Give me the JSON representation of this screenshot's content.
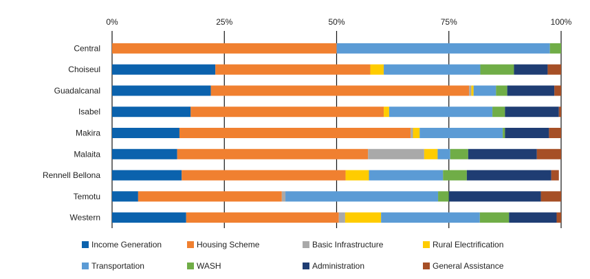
{
  "chart_data": {
    "type": "bar",
    "orientation": "horizontal",
    "stacked": true,
    "normalized_percent": true,
    "title": "",
    "xlabel": "",
    "ylabel": "",
    "xlim": [
      0,
      100
    ],
    "x_ticks": [
      "0%",
      "25%",
      "50%",
      "75%",
      "100%"
    ],
    "grid": "vertical",
    "legend_position": "bottom",
    "categories": [
      "Central",
      "Choiseul",
      "Guadalcanal",
      "Isabel",
      "Makira",
      "Malaita",
      "Rennell Bellona",
      "Temotu",
      "Western"
    ],
    "series": [
      {
        "name": "Income Generation",
        "color": "#0b62ad",
        "values": [
          0,
          23,
          22,
          17.5,
          15,
          14.5,
          15.5,
          5.8,
          16.5
        ]
      },
      {
        "name": "Housing Scheme",
        "color": "#f08030",
        "values": [
          50,
          34.5,
          57.5,
          43,
          51.5,
          42.5,
          36.5,
          32,
          34
        ]
      },
      {
        "name": "Basic Infrastructure",
        "color": "#a9a9a9",
        "values": [
          0,
          0,
          0.5,
          0,
          0.5,
          12.5,
          0,
          0.8,
          1.4
        ]
      },
      {
        "name": "Rural Electrification",
        "color": "#ffcc00",
        "values": [
          0,
          3,
          0.5,
          1.2,
          1.5,
          3,
          5.2,
          0,
          8
        ]
      },
      {
        "name": "Transportation",
        "color": "#5b9bd5",
        "values": [
          47.5,
          21.5,
          5,
          23,
          18.5,
          2.8,
          16.5,
          34,
          22
        ]
      },
      {
        "name": "WASH",
        "color": "#70ad47",
        "values": [
          2.5,
          7.5,
          2.5,
          2.8,
          0.5,
          4,
          5.3,
          2.4,
          6.5
        ]
      },
      {
        "name": "Administration",
        "color": "#1f3d73",
        "values": [
          0,
          7.5,
          10.5,
          12,
          9.8,
          15.3,
          18.8,
          20.5,
          10.6
        ]
      },
      {
        "name": "General Assistance",
        "color": "#a64f26",
        "values": [
          0,
          3,
          1.5,
          0.5,
          2.7,
          5.4,
          1.7,
          4.5,
          1
        ]
      }
    ]
  }
}
